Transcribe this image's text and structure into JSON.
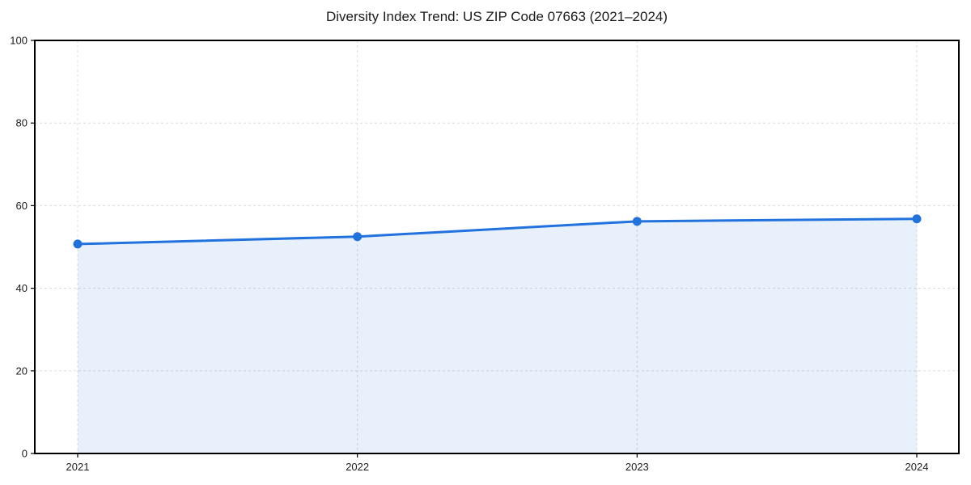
{
  "chart_data": {
    "type": "area",
    "title": "Diversity Index Trend: US ZIP Code 07663 (2021–2024)",
    "categories": [
      "2021",
      "2022",
      "2023",
      "2024"
    ],
    "series": [
      {
        "name": "Diversity Index",
        "values": [
          50.7,
          52.5,
          56.2,
          56.8
        ]
      }
    ],
    "xlabel": "",
    "ylabel": "",
    "ylim": [
      0,
      100
    ],
    "yticks": [
      0,
      20,
      40,
      60,
      80,
      100
    ],
    "grid": true,
    "grid_style": "dashed",
    "legend": false,
    "marker": "circle",
    "colors": {
      "line": "#2272dd",
      "marker": "#2272dd",
      "fill": "rgba(34,114,221,0.11)",
      "grid": "#dcdcdc",
      "spine": "#000000",
      "tick_text": "#1c1c1c",
      "background": "#ffffff"
    }
  }
}
